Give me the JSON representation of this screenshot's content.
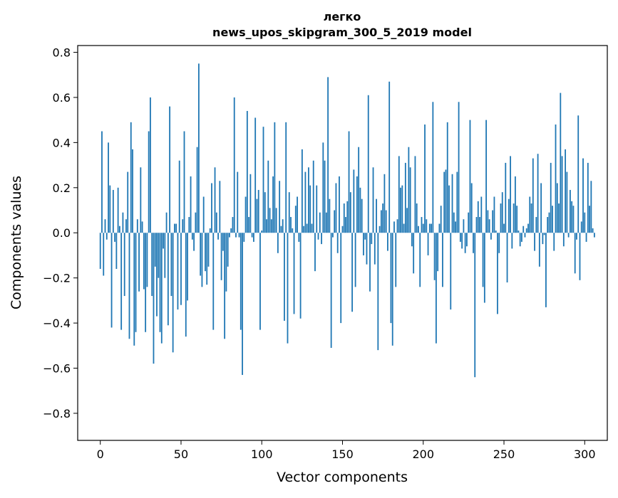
{
  "chart_data": {
    "type": "bar",
    "title_line1": "легко",
    "title_line2": "news_upos_skipgram_300_5_2019 model",
    "xlabel": "Vector components",
    "ylabel": "Components values",
    "xlim": [
      -14,
      314
    ],
    "ylim": [
      -0.92,
      0.83
    ],
    "xticks": [
      0,
      50,
      100,
      150,
      200,
      250,
      300
    ],
    "xtick_labels": [
      "0",
      "50",
      "100",
      "150",
      "200",
      "250",
      "300"
    ],
    "yticks": [
      -0.8,
      -0.6,
      -0.4,
      -0.2,
      0.0,
      0.2,
      0.4,
      0.6,
      0.8
    ],
    "ytick_labels": [
      "−0.8",
      "−0.6",
      "−0.4",
      "−0.2",
      "0.0",
      "0.2",
      "0.4",
      "0.6",
      "0.8"
    ],
    "bar_color": "#1f77b4",
    "values": [
      -0.16,
      0.45,
      -0.19,
      0.06,
      -0.03,
      0.4,
      0.21,
      -0.42,
      0.19,
      -0.04,
      -0.16,
      0.2,
      0.03,
      -0.43,
      0.09,
      -0.28,
      0.06,
      0.27,
      -0.47,
      0.49,
      0.37,
      -0.5,
      -0.44,
      0.06,
      -0.26,
      0.29,
      0.05,
      -0.25,
      -0.44,
      -0.24,
      0.45,
      0.6,
      -0.28,
      -0.58,
      -0.15,
      -0.37,
      -0.2,
      -0.44,
      -0.49,
      -0.07,
      -0.2,
      0.09,
      -0.41,
      0.56,
      -0.28,
      -0.53,
      0.04,
      0.04,
      -0.34,
      0.32,
      -0.32,
      0.06,
      0.45,
      -0.46,
      -0.3,
      0.07,
      0.25,
      -0.03,
      -0.08,
      0.09,
      0.38,
      0.75,
      -0.19,
      -0.24,
      0.16,
      -0.17,
      -0.23,
      -0.15,
      0.02,
      0.22,
      -0.43,
      0.29,
      0.09,
      -0.03,
      0.23,
      -0.21,
      -0.08,
      -0.47,
      -0.26,
      -0.15,
      -0.02,
      0.02,
      0.07,
      0.6,
      -0.02,
      0.27,
      -0.02,
      -0.43,
      -0.63,
      -0.04,
      0.16,
      0.54,
      0.07,
      0.26,
      -0.02,
      -0.04,
      0.51,
      0.15,
      0.19,
      -0.43,
      0.01,
      0.47,
      0.18,
      0.06,
      0.32,
      0.11,
      0.06,
      0.25,
      0.49,
      0.11,
      -0.09,
      0.23,
      0.03,
      0.06,
      -0.39,
      0.49,
      -0.49,
      0.18,
      0.07,
      0.02,
      -0.36,
      0.12,
      0.16,
      -0.04,
      -0.38,
      0.37,
      0.03,
      0.27,
      0.04,
      0.29,
      0.21,
      0.04,
      0.32,
      -0.17,
      0.21,
      -0.03,
      0.09,
      -0.05,
      0.4,
      0.32,
      0.09,
      0.69,
      0.15,
      -0.51,
      -0.02,
      0.1,
      0.22,
      -0.09,
      0.25,
      -0.4,
      0.03,
      0.13,
      0.07,
      0.14,
      0.45,
      0.18,
      -0.35,
      0.28,
      -0.24,
      0.25,
      0.38,
      0.2,
      0.15,
      -0.1,
      -0.03,
      -0.14,
      0.61,
      -0.26,
      -0.05,
      0.29,
      -0.14,
      0.15,
      -0.52,
      0.03,
      0.1,
      0.13,
      0.26,
      0.1,
      -0.08,
      0.67,
      -0.4,
      -0.5,
      0.05,
      -0.24,
      0.06,
      0.34,
      0.2,
      0.21,
      0.04,
      0.31,
      0.11,
      0.38,
      0.29,
      -0.06,
      -0.18,
      0.34,
      0.13,
      0.03,
      -0.24,
      0.07,
      0.04,
      0.48,
      0.06,
      -0.1,
      0.04,
      0.04,
      0.58,
      -0.21,
      -0.49,
      -0.17,
      0.04,
      0.12,
      -0.24,
      0.27,
      0.28,
      0.49,
      0.21,
      -0.34,
      0.26,
      0.09,
      0.05,
      0.27,
      0.58,
      -0.04,
      -0.07,
      0.06,
      -0.09,
      -0.06,
      0.09,
      0.5,
      0.22,
      -0.09,
      -0.64,
      0.07,
      0.14,
      0.07,
      0.16,
      -0.24,
      -0.31,
      0.5,
      0.1,
      0.06,
      -0.03,
      0.1,
      0.16,
      0.01,
      -0.36,
      -0.09,
      0.13,
      0.18,
      0.04,
      0.31,
      -0.22,
      0.15,
      0.34,
      -0.07,
      0.13,
      0.25,
      0.12,
      0.01,
      -0.06,
      -0.04,
      0.03,
      -0.02,
      0.02,
      0.04,
      0.16,
      0.13,
      0.33,
      -0.08,
      0.07,
      0.35,
      -0.15,
      0.22,
      -0.05,
      -0.01,
      -0.33,
      0.07,
      0.09,
      0.31,
      0.12,
      -0.08,
      0.48,
      0.22,
      0.13,
      0.62,
      0.34,
      -0.06,
      0.37,
      0.27,
      -0.02,
      0.19,
      0.14,
      0.12,
      -0.18,
      -0.03,
      0.52,
      -0.21,
      0.05,
      0.33,
      0.09,
      -0.04,
      0.31,
      0.12,
      0.23,
      0.02,
      -0.02
    ]
  }
}
